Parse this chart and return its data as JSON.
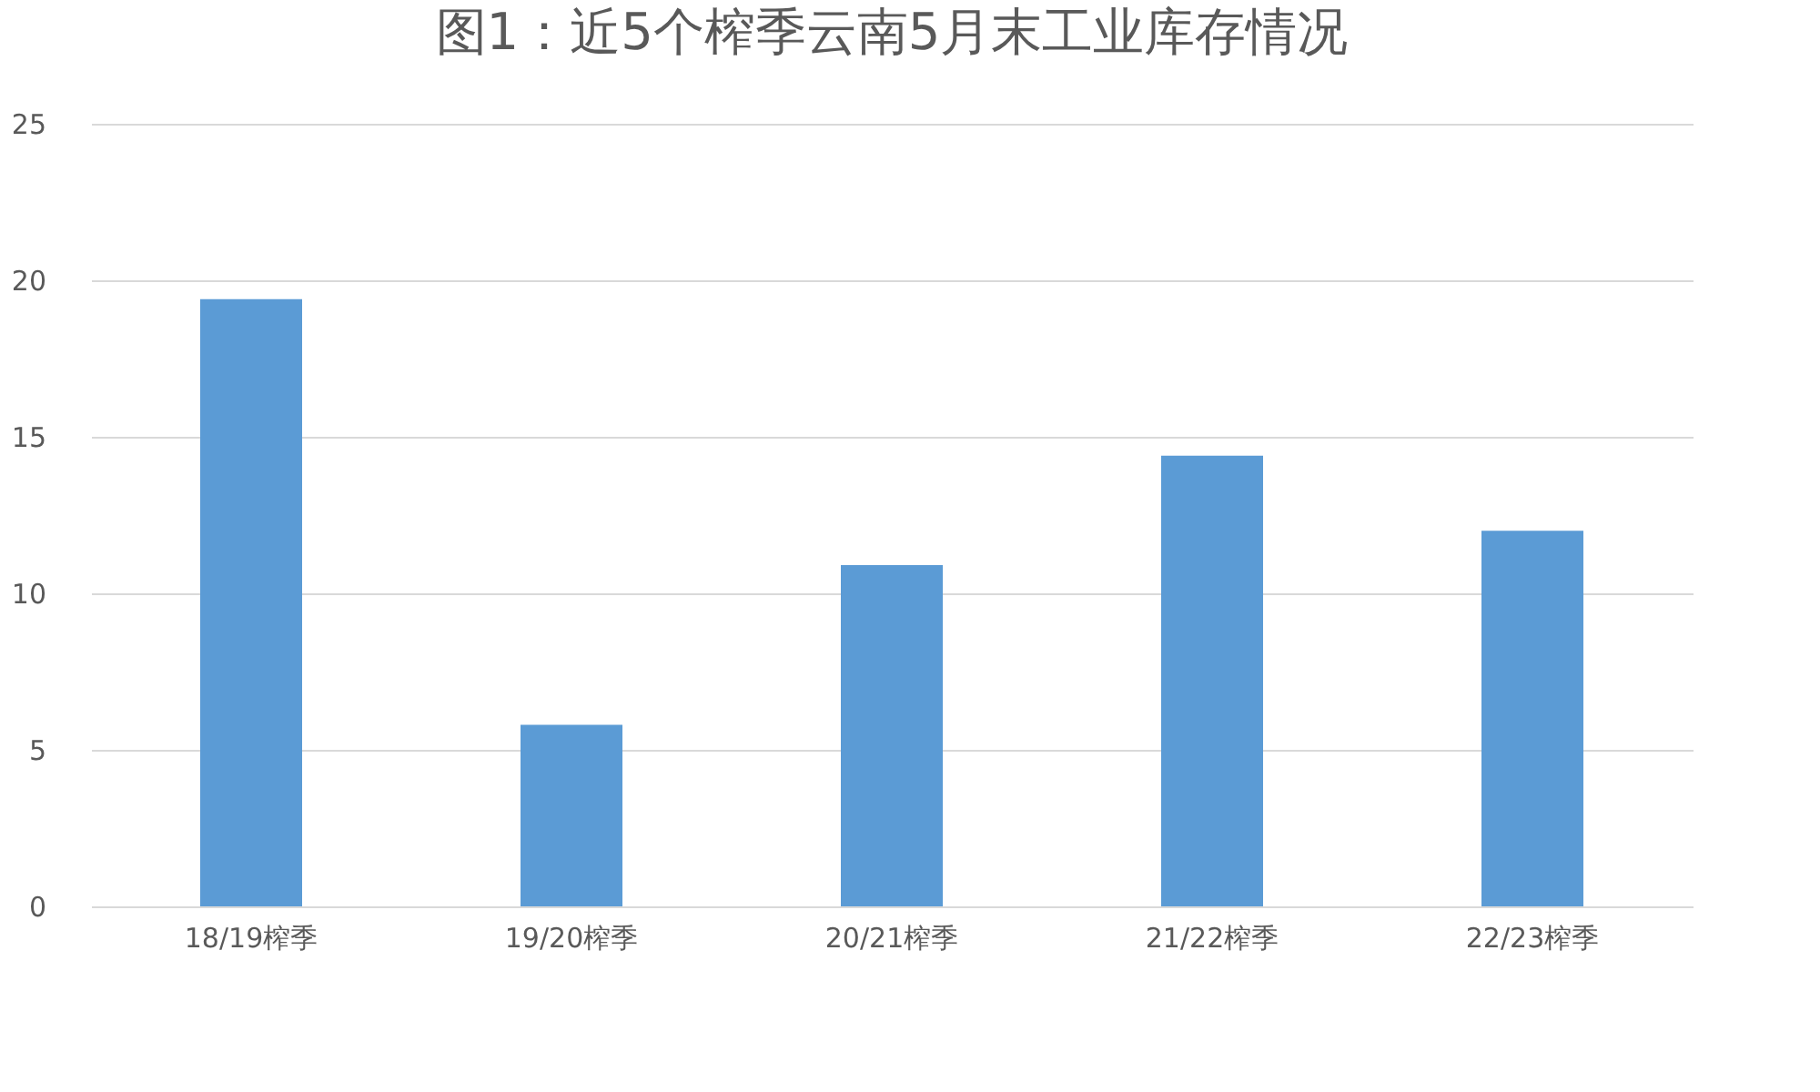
{
  "chart_data": {
    "type": "bar",
    "title": "图1：近5个榨季云南5月末工业库存情况",
    "categories": [
      "18/19榨季",
      "19/20榨季",
      "20/21榨季",
      "21/22榨季",
      "22/23榨季"
    ],
    "values": [
      19.4,
      5.8,
      10.9,
      14.4,
      12.0
    ],
    "color": "#5b9bd5",
    "ylim": [
      0,
      25
    ],
    "yticks": [
      0,
      5,
      10,
      15,
      20,
      25
    ],
    "grid": "y"
  }
}
